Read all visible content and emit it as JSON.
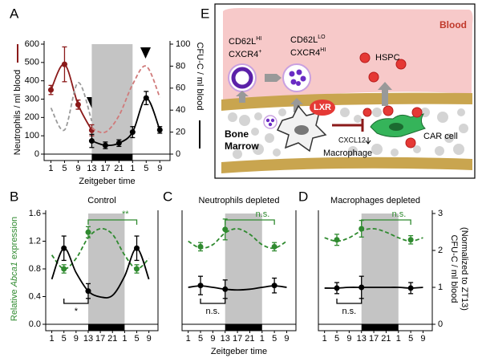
{
  "chart_data": [
    {
      "type": "line",
      "panel": "A",
      "xlabel": "Zeitgeber time",
      "ylabel": "Neutrophils / ml blood",
      "y2label": "CFU-C / ml blood",
      "xlim": [
        -1,
        36
      ],
      "xticks": [
        1,
        5,
        9,
        13,
        17,
        21,
        {
          "value": 25,
          "label": "1"
        },
        {
          "value": 29,
          "label": "5"
        },
        {
          "value": 33,
          "label": "9"
        }
      ],
      "ylim": [
        0,
        600
      ],
      "yticks": [
        0,
        100,
        200,
        300,
        400,
        500,
        600
      ],
      "y2lim": [
        0,
        100
      ],
      "y2ticks": [
        0,
        20,
        40,
        60,
        80,
        100
      ],
      "dark_phase": [
        13,
        25
      ],
      "series": [
        {
          "color": "#8b1a1a",
          "line": "solid",
          "markers": true,
          "x": [
            1,
            5,
            9,
            13
          ],
          "values": [
            350,
            490,
            270,
            130
          ],
          "errors": [
            25,
            95,
            25,
            30
          ]
        },
        {
          "color": "#d07a7a",
          "line": "dashed",
          "x": [
            13,
            17,
            21,
            25,
            29,
            33
          ],
          "values": [
            140,
            120,
            210,
            380,
            480,
            310
          ]
        },
        {
          "color": "#000000",
          "axis": "y2",
          "line": "solid",
          "markers": true,
          "x": [
            13,
            17,
            21,
            25,
            29,
            33
          ],
          "values": [
            12,
            8,
            10,
            20,
            51,
            22
          ],
          "errors": [
            6,
            3,
            3,
            5,
            6,
            3
          ]
        },
        {
          "color": "#9a9a9a",
          "axis": "y2",
          "line": "dashed",
          "x": [
            1,
            5,
            9,
            13
          ],
          "values": [
            42,
            22,
            65,
            30
          ]
        }
      ]
    },
    {
      "type": "line",
      "panel": "B",
      "title": "Control",
      "ylabel": [
        "Relative ",
        "Abca1",
        " expression"
      ],
      "xlim": [
        -1,
        36
      ],
      "xticks": [
        1,
        5,
        9,
        13,
        17,
        21,
        {
          "value": 25,
          "label": "1"
        },
        {
          "value": 29,
          "label": "5"
        },
        {
          "value": 33,
          "label": "9"
        }
      ],
      "ylim": [
        0,
        1.6
      ],
      "yticks": [
        {
          "value": 0,
          "label": "0.0"
        },
        0.4,
        0.8,
        1.2,
        1.6
      ],
      "y2lim": [
        0,
        3
      ],
      "dark_phase": [
        13,
        25
      ],
      "series": [
        {
          "color": "#2f8a2f",
          "line": "dashed",
          "x": [
            1,
            5,
            9,
            13,
            17,
            21,
            25,
            29,
            33
          ],
          "values": [
            1.0,
            0.8,
            0.95,
            1.25,
            1.38,
            1.3,
            1.0,
            0.8,
            0.95
          ]
        },
        {
          "color": "#000000",
          "axis": "y2",
          "line": "solid",
          "x": [
            1,
            5,
            9,
            13,
            17,
            21,
            25,
            29,
            33
          ],
          "values": [
            1.22,
            2.06,
            1.4,
            0.9,
            0.74,
            0.78,
            1.3,
            2.06,
            1.22
          ]
        },
        {
          "color": "#2f8a2f",
          "markers": true,
          "x": [
            5,
            13,
            29
          ],
          "values": [
            0.8,
            1.33,
            0.8
          ],
          "errors": [
            0.06,
            0.08,
            0.06
          ]
        },
        {
          "color": "#000000",
          "axis": "y2",
          "markers": true,
          "x": [
            5,
            13,
            29
          ],
          "values": [
            2.06,
            0.9,
            2.06
          ],
          "errors": [
            0.33,
            0.2,
            0.33
          ]
        }
      ],
      "brackets": [
        {
          "text": "*",
          "from": 5,
          "to": 13,
          "side": "below",
          "color": "#000000"
        },
        {
          "text": "**",
          "from": 13,
          "to": 29,
          "side": "above",
          "color": "#2f8a2f"
        }
      ]
    },
    {
      "type": "line",
      "panel": "C",
      "title": "Neutrophils depleted",
      "xlabel": "Zeitgeber time",
      "xlim": [
        -1,
        36
      ],
      "xticks": [
        1,
        5,
        9,
        13,
        17,
        21,
        {
          "value": 25,
          "label": "1"
        },
        {
          "value": 29,
          "label": "5"
        },
        {
          "value": 33,
          "label": "9"
        }
      ],
      "ylim": [
        0,
        1.6
      ],
      "y2lim": [
        0,
        3
      ],
      "dark_phase": [
        13,
        25
      ],
      "series": [
        {
          "color": "#2f8a2f",
          "line": "dashed",
          "x": [
            1,
            5,
            9,
            13,
            17,
            21,
            25,
            29,
            33
          ],
          "values": [
            1.2,
            1.1,
            1.15,
            1.32,
            1.38,
            1.3,
            1.15,
            1.1,
            1.2
          ]
        },
        {
          "color": "#000000",
          "axis": "y2",
          "line": "solid",
          "x": [
            1,
            5,
            9,
            13,
            17,
            21,
            25,
            29,
            33
          ],
          "values": [
            1.0,
            1.04,
            1.0,
            0.95,
            0.93,
            0.95,
            1.0,
            1.04,
            1.0
          ]
        },
        {
          "color": "#2f8a2f",
          "markers": true,
          "x": [
            5,
            13,
            29
          ],
          "values": [
            1.12,
            1.37,
            1.12
          ],
          "errors": [
            0.06,
            0.15,
            0.06
          ]
        },
        {
          "color": "#000000",
          "axis": "y2",
          "markers": true,
          "x": [
            5,
            13,
            29
          ],
          "values": [
            1.05,
            0.95,
            1.05
          ],
          "errors": [
            0.25,
            0.25,
            0.2
          ]
        }
      ],
      "brackets": [
        {
          "text": "n.s.",
          "from": 5,
          "to": 13,
          "side": "below",
          "color": "#000000"
        },
        {
          "text": "n.s.",
          "from": 13,
          "to": 29,
          "side": "above",
          "color": "#2f8a2f"
        }
      ]
    },
    {
      "type": "line",
      "panel": "D",
      "title": "Macrophages depleted",
      "y2label": [
        "CFU-C / ml blood",
        "(Normalized to ZT13)"
      ],
      "xlim": [
        -1,
        36
      ],
      "xticks": [
        1,
        5,
        9,
        13,
        17,
        21,
        {
          "value": 25,
          "label": "1"
        },
        {
          "value": 29,
          "label": "5"
        },
        {
          "value": 33,
          "label": "9"
        }
      ],
      "ylim": [
        0,
        1.6
      ],
      "y2lim": [
        0,
        3
      ],
      "y2ticks": [
        0,
        1,
        2,
        3
      ],
      "dark_phase": [
        13,
        25
      ],
      "series": [
        {
          "color": "#2f8a2f",
          "line": "dashed",
          "x": [
            1,
            5,
            9,
            13,
            17,
            21,
            25,
            29,
            33
          ],
          "values": [
            1.25,
            1.2,
            1.25,
            1.35,
            1.38,
            1.33,
            1.25,
            1.2,
            1.25
          ]
        },
        {
          "color": "#000000",
          "axis": "y2",
          "line": "solid",
          "x": [
            1,
            5,
            9,
            13,
            17,
            21,
            25,
            29,
            33
          ],
          "values": [
            0.98,
            0.98,
            1.0,
            1.0,
            1.0,
            1.0,
            1.0,
            0.98,
            1.0
          ]
        },
        {
          "color": "#2f8a2f",
          "markers": true,
          "x": [
            5,
            13,
            29
          ],
          "values": [
            1.22,
            1.38,
            1.22
          ],
          "errors": [
            0.08,
            0.12,
            0.06
          ]
        },
        {
          "color": "#000000",
          "axis": "y2",
          "markers": true,
          "x": [
            5,
            13,
            29
          ],
          "values": [
            0.98,
            1.0,
            0.98
          ],
          "errors": [
            0.15,
            0.3,
            0.15
          ]
        }
      ],
      "brackets": [
        {
          "text": "n.s.",
          "from": 5,
          "to": 13,
          "side": "below",
          "color": "#000000"
        },
        {
          "text": "n.s.",
          "from": 13,
          "to": 29,
          "side": "above",
          "color": "#2f8a2f"
        }
      ]
    }
  ],
  "diagram": {
    "panel": "E",
    "blood": "Blood",
    "cells": [
      {
        "lines": [
          {
            "base": "CD62L",
            "sup": "HI"
          },
          {
            "base": "CXCR4",
            "sup": "+"
          }
        ]
      },
      {
        "lines": [
          {
            "base": "CD62L",
            "sup": "LO"
          },
          {
            "base": "CXCR4",
            "sup": "HI"
          }
        ]
      }
    ],
    "hspc": "HSPC",
    "lxr": "LXR",
    "marrow": [
      "Bone",
      "Marrow"
    ],
    "macrophage": "Macrophage",
    "car_cell": "CAR cell",
    "cxcl12": "CXCL12"
  }
}
